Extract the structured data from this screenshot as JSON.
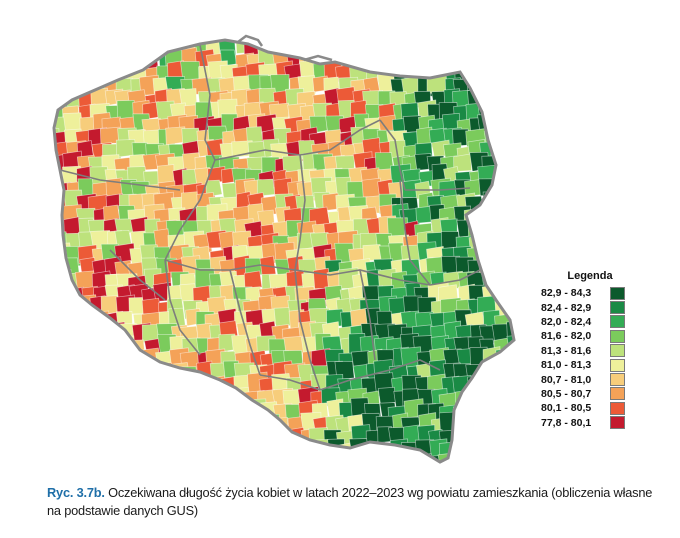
{
  "legend": {
    "title": "Legenda",
    "classes": [
      {
        "range": "82,9  -  84,3",
        "color": "#0c5a2c"
      },
      {
        "range": "82,4  -  82,9",
        "color": "#1a8a45"
      },
      {
        "range": "82,0  -  82,4",
        "color": "#33ac55"
      },
      {
        "range": "81,6  -  82,0",
        "color": "#7bcb5c"
      },
      {
        "range": "81,3  -  81,6",
        "color": "#bde27c"
      },
      {
        "range": "81,0  -  81,3",
        "color": "#eef09b"
      },
      {
        "range": "80,7  -  81,0",
        "color": "#f7cd7b"
      },
      {
        "range": "80,5  -  80,7",
        "color": "#f4a258"
      },
      {
        "range": "80,1  -  80,5",
        "color": "#ec5a37"
      },
      {
        "range": "77,8  -  80,1",
        "color": "#c41a2e"
      }
    ]
  },
  "caption": {
    "figure_id": "Ryc. 3.7b.",
    "text": "Oczekiwana długość życia kobiet w latach 2022–2023 wg powiatu zamieszkania (obliczenia własne na podstawie danych GUS)"
  },
  "colors": {
    "border_coast": "#8a8a8a",
    "voivodeship_border": "#7d7d7d"
  }
}
